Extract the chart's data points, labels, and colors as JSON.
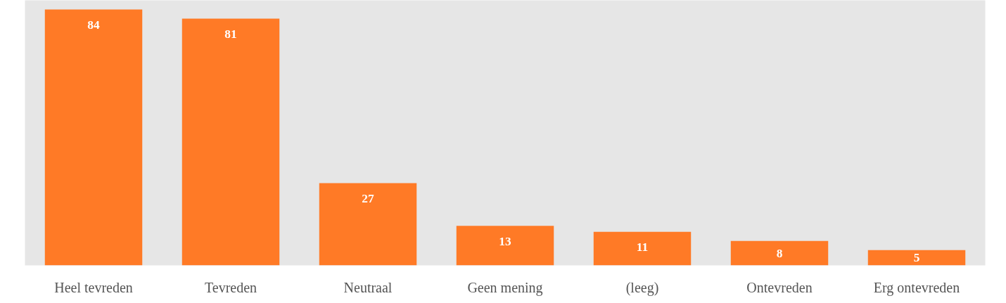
{
  "chart_data": {
    "type": "bar",
    "categories": [
      "Heel tevreden",
      "Tevreden",
      "Neutraal",
      "Geen mening",
      "(leeg)",
      "Ontevreden",
      "Erg ontevreden"
    ],
    "values": [
      84,
      81,
      27,
      13,
      11,
      8,
      5
    ],
    "color": "#ff7a26",
    "data_labels": true
  }
}
